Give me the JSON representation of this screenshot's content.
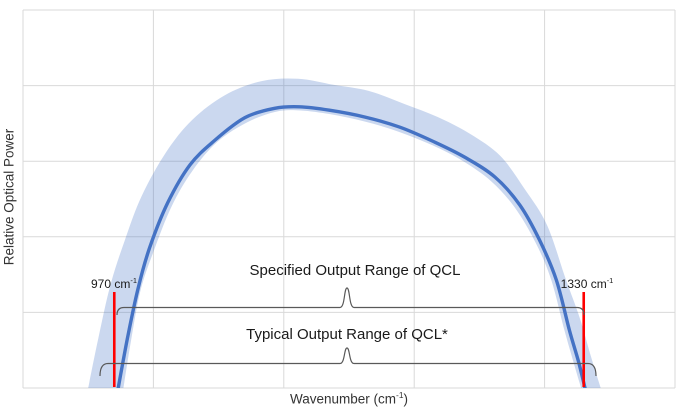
{
  "figure": {
    "background": "#ffffff",
    "grid_color": "#d9d9d9",
    "line_color": "#4472c4",
    "band_color": "#4472c4",
    "band_opacity": 0.28,
    "marker_color": "#ff0000",
    "bracket_color": "#595959"
  },
  "labels": {
    "y_axis": "Relative Optical Power",
    "x_axis": {
      "base": "Wavenumber (cm",
      "sup": "-1",
      "close": ")"
    },
    "specified_range": "Specified Output Range of QCL",
    "typical_range": "Typical Output Range of QCL*",
    "marker_left": {
      "base": "970 cm",
      "sup": "-1"
    },
    "marker_right": {
      "base": "1330 cm",
      "sup": "-1"
    }
  },
  "chart_data": {
    "type": "area",
    "title": "",
    "xlabel": "Wavenumber (cm^-1)",
    "ylabel": "Relative Optical Power",
    "x_range": [
      900,
      1400
    ],
    "y_range": [
      0,
      1
    ],
    "x_gridline_step": 100,
    "y_gridline_step": 0.2,
    "grid": true,
    "legend": false,
    "x_markers": [
      970,
      1330
    ],
    "annotations": [
      {
        "text": "Specified Output Range of QCL",
        "x_from": 970,
        "x_to": 1330
      },
      {
        "text": "Typical Output Range of QCL*",
        "x_from": 959,
        "x_to": 1340
      }
    ],
    "series": [
      {
        "name": "relative-optical-power",
        "style": "line",
        "points": [
          [
            973,
            0
          ],
          [
            980,
            0.13
          ],
          [
            988,
            0.26
          ],
          [
            997,
            0.37
          ],
          [
            1011,
            0.49
          ],
          [
            1028,
            0.59
          ],
          [
            1047,
            0.655
          ],
          [
            1070,
            0.715
          ],
          [
            1093,
            0.74
          ],
          [
            1112,
            0.744
          ],
          [
            1135,
            0.735
          ],
          [
            1162,
            0.717
          ],
          [
            1189,
            0.69
          ],
          [
            1216,
            0.65
          ],
          [
            1239,
            0.61
          ],
          [
            1262,
            0.558
          ],
          [
            1281,
            0.484
          ],
          [
            1296,
            0.392
          ],
          [
            1309,
            0.286
          ],
          [
            1319,
            0.153
          ],
          [
            1326,
            0.07
          ],
          [
            1331,
            0
          ]
        ]
      },
      {
        "name": "tolerance-band-upper",
        "style": "band-edge",
        "points": [
          [
            950,
            0
          ],
          [
            958,
            0.135
          ],
          [
            967,
            0.272
          ],
          [
            978,
            0.39
          ],
          [
            991,
            0.508
          ],
          [
            1010,
            0.625
          ],
          [
            1030,
            0.71
          ],
          [
            1055,
            0.775
          ],
          [
            1083,
            0.812
          ],
          [
            1111,
            0.818
          ],
          [
            1138,
            0.802
          ],
          [
            1165,
            0.786
          ],
          [
            1192,
            0.752
          ],
          [
            1218,
            0.717
          ],
          [
            1243,
            0.672
          ],
          [
            1266,
            0.614
          ],
          [
            1285,
            0.525
          ],
          [
            1302,
            0.43
          ],
          [
            1316,
            0.29
          ],
          [
            1327,
            0.185
          ],
          [
            1335,
            0.09
          ],
          [
            1343,
            0
          ]
        ]
      },
      {
        "name": "tolerance-band-lower",
        "style": "band-edge",
        "points": [
          [
            977,
            0
          ],
          [
            983,
            0.128
          ],
          [
            990,
            0.257
          ],
          [
            1000,
            0.36
          ],
          [
            1014,
            0.481
          ],
          [
            1030,
            0.575
          ],
          [
            1049,
            0.651
          ],
          [
            1072,
            0.703
          ],
          [
            1094,
            0.731
          ],
          [
            1113,
            0.734
          ],
          [
            1136,
            0.724
          ],
          [
            1162,
            0.705
          ],
          [
            1188,
            0.678
          ],
          [
            1214,
            0.642
          ],
          [
            1237,
            0.601
          ],
          [
            1259,
            0.547
          ],
          [
            1277,
            0.478
          ],
          [
            1293,
            0.385
          ],
          [
            1305,
            0.287
          ],
          [
            1315,
            0.155
          ],
          [
            1322,
            0.07
          ],
          [
            1328,
            0
          ]
        ]
      }
    ]
  }
}
